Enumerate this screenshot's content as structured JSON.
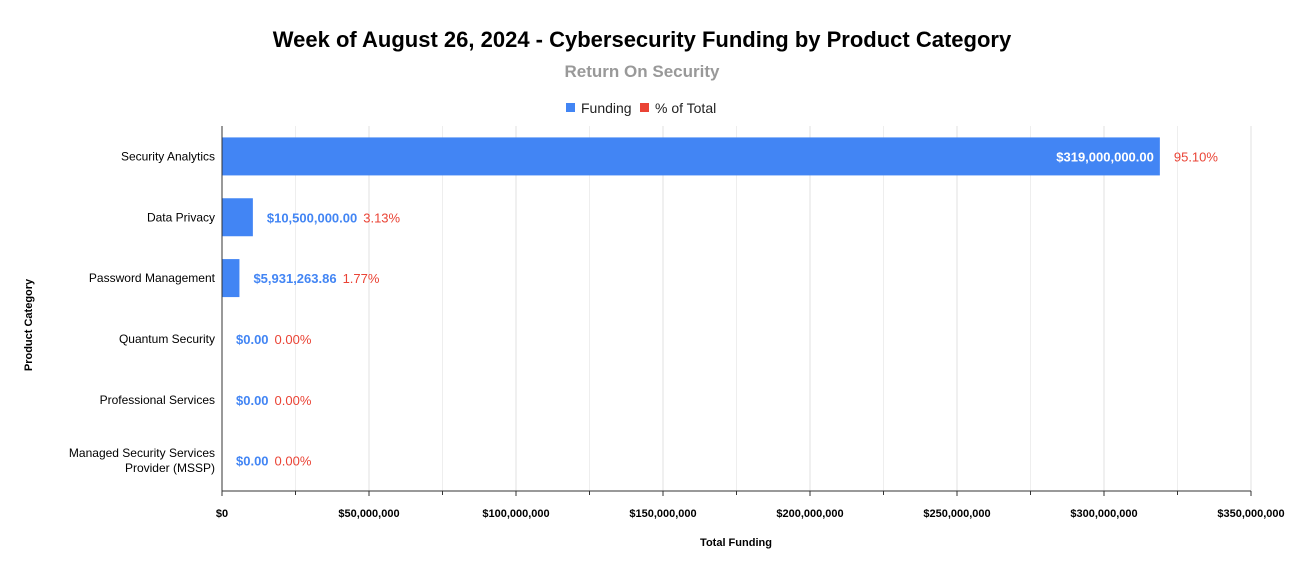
{
  "chart_data": {
    "type": "bar",
    "orientation": "horizontal",
    "title": "Week of August 26, 2024 - Cybersecurity Funding by Product Category",
    "subtitle": "Return On Security",
    "xlabel": "Total Funding",
    "ylabel": "Product Category",
    "xlim": [
      0,
      350000000
    ],
    "grid": true,
    "legend_position": "top-center",
    "legend": [
      {
        "name": "Funding",
        "color": "#4285f4"
      },
      {
        "name": "% of Total",
        "color": "#ea4335"
      }
    ],
    "categories": [
      "Security Analytics",
      "Data Privacy",
      "Password Management",
      "Quantum Security",
      "Professional Services",
      "Managed Security Services Provider (MSSP)"
    ],
    "category_label_lines": [
      [
        "Security Analytics"
      ],
      [
        "Data Privacy"
      ],
      [
        "Password Management"
      ],
      [
        "Quantum Security"
      ],
      [
        "Professional Services"
      ],
      [
        "Managed Security Services",
        "Provider (MSSP)"
      ]
    ],
    "series": [
      {
        "name": "Funding",
        "values": [
          319000000,
          10500000,
          5931263.86,
          0,
          0,
          0
        ],
        "labels": [
          "$319,000,000.00",
          "$10,500,000.00",
          "$5,931,263.86",
          "$0.00",
          "$0.00",
          "$0.00"
        ]
      },
      {
        "name": "% of Total",
        "values": [
          95.1,
          3.13,
          1.77,
          0.0,
          0.0,
          0.0
        ],
        "labels": [
          "95.10%",
          "3.13%",
          "1.77%",
          "0.00%",
          "0.00%",
          "0.00%"
        ]
      }
    ],
    "x_ticks": [
      {
        "value": 0,
        "label": "$0"
      },
      {
        "value": 50000000,
        "label": "$50,000,000"
      },
      {
        "value": 100000000,
        "label": "$100,000,000"
      },
      {
        "value": 150000000,
        "label": "$150,000,000"
      },
      {
        "value": 200000000,
        "label": "$200,000,000"
      },
      {
        "value": 250000000,
        "label": "$250,000,000"
      },
      {
        "value": 300000000,
        "label": "$300,000,000"
      },
      {
        "value": 350000000,
        "label": "$350,000,000"
      }
    ],
    "colors": {
      "bar": "#4285f4",
      "pct": "#ea4335",
      "grid": "#e0e0e0",
      "minor_grid": "#eeeeee",
      "axis": "#333333"
    }
  }
}
